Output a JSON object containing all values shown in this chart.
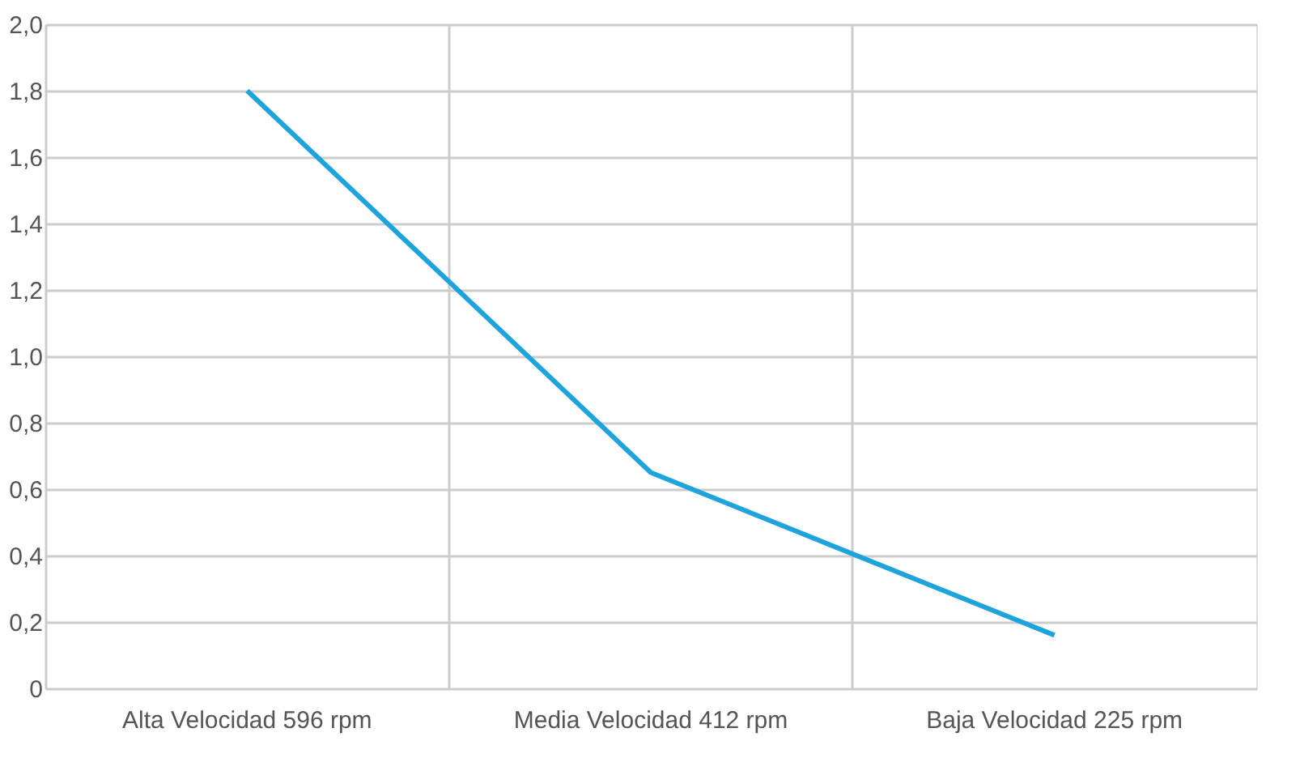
{
  "chart_data": {
    "type": "line",
    "categories": [
      "Alta Velocidad 596 rpm",
      "Media Velocidad 412 rpm",
      "Baja Velocidad 225 rpm"
    ],
    "series": [
      {
        "color": "#1ea3dc",
        "values": [
          1.8,
          0.65,
          0.16
        ]
      }
    ],
    "ylim": [
      0,
      2.0
    ],
    "yticks": [
      {
        "value": 0,
        "label": "0"
      },
      {
        "value": 0.2,
        "label": "0,2"
      },
      {
        "value": 0.4,
        "label": "0,4"
      },
      {
        "value": 0.6,
        "label": "0,6"
      },
      {
        "value": 0.8,
        "label": "0,8"
      },
      {
        "value": 1.0,
        "label": "1,0"
      },
      {
        "value": 1.2,
        "label": "1,2"
      },
      {
        "value": 1.4,
        "label": "1,4"
      },
      {
        "value": 1.6,
        "label": "1,6"
      },
      {
        "value": 1.8,
        "label": "1,8"
      },
      {
        "value": 2.0,
        "label": "2,0"
      }
    ],
    "grid": true,
    "marker": "none",
    "line_style": "solid"
  }
}
